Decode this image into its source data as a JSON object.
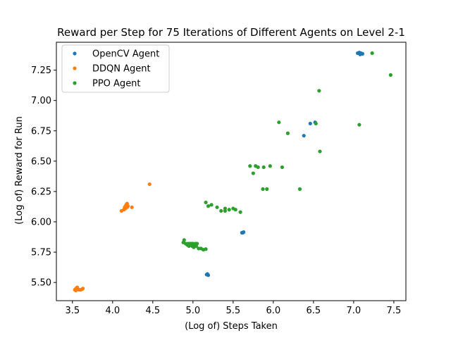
{
  "chart_data": {
    "type": "scatter",
    "title": "Reward per Step for 75 Iterations of Different Agents on Level 2-1",
    "xlabel": "(Log of) Steps Taken",
    "ylabel": "(Log of) Reward for Run",
    "xlim": [
      3.3,
      7.65
    ],
    "ylim": [
      5.35,
      7.48
    ],
    "xticks": [
      "3.5",
      "4.0",
      "4.5",
      "5.0",
      "5.5",
      "6.0",
      "6.5",
      "7.0",
      "7.5"
    ],
    "yticks": [
      "5.50",
      "5.75",
      "6.00",
      "6.25",
      "6.50",
      "6.75",
      "7.00",
      "7.25"
    ],
    "grid": false,
    "legend_position": "top-left",
    "series": [
      {
        "name": "OpenCV Agent",
        "color": "#1f77b4",
        "points": [
          [
            5.18,
            5.57
          ],
          [
            5.19,
            5.56
          ],
          [
            5.17,
            5.565
          ],
          [
            5.62,
            5.91
          ],
          [
            5.63,
            5.915
          ],
          [
            5.61,
            5.91
          ],
          [
            6.38,
            6.71
          ],
          [
            6.46,
            6.81
          ],
          [
            6.52,
            6.82
          ],
          [
            7.05,
            7.39
          ],
          [
            7.07,
            7.395
          ],
          [
            7.09,
            7.39
          ],
          [
            7.1,
            7.385
          ],
          [
            7.11,
            7.385
          ],
          [
            7.08,
            7.38
          ]
        ]
      },
      {
        "name": "DDQN Agent",
        "color": "#ff7f0e",
        "points": [
          [
            3.53,
            5.44
          ],
          [
            3.54,
            5.445
          ],
          [
            3.55,
            5.44
          ],
          [
            3.56,
            5.45
          ],
          [
            3.55,
            5.455
          ],
          [
            3.57,
            5.445
          ],
          [
            3.58,
            5.44
          ],
          [
            3.6,
            5.44
          ],
          [
            3.62,
            5.445
          ],
          [
            3.63,
            5.45
          ],
          [
            3.56,
            5.46
          ],
          [
            3.54,
            5.435
          ],
          [
            4.11,
            6.09
          ],
          [
            4.14,
            6.1
          ],
          [
            4.15,
            6.12
          ],
          [
            4.16,
            6.13
          ],
          [
            4.17,
            6.14
          ],
          [
            4.18,
            6.15
          ],
          [
            4.19,
            6.13
          ],
          [
            4.16,
            6.11
          ],
          [
            4.18,
            6.12
          ],
          [
            4.24,
            6.12
          ],
          [
            4.46,
            6.31
          ]
        ]
      },
      {
        "name": "PPO Agent",
        "color": "#2ca02c",
        "points": [
          [
            4.88,
            5.83
          ],
          [
            4.89,
            5.85
          ],
          [
            4.91,
            5.82
          ],
          [
            4.93,
            5.81
          ],
          [
            4.94,
            5.82
          ],
          [
            4.95,
            5.8
          ],
          [
            4.96,
            5.82
          ],
          [
            4.97,
            5.81
          ],
          [
            4.98,
            5.82
          ],
          [
            4.99,
            5.8
          ],
          [
            5.0,
            5.82
          ],
          [
            5.01,
            5.79
          ],
          [
            5.02,
            5.81
          ],
          [
            5.03,
            5.82
          ],
          [
            5.04,
            5.8
          ],
          [
            5.05,
            5.82
          ],
          [
            5.07,
            5.78
          ],
          [
            5.1,
            5.78
          ],
          [
            5.13,
            5.77
          ],
          [
            5.16,
            5.775
          ],
          [
            5.16,
            6.16
          ],
          [
            5.19,
            6.13
          ],
          [
            5.23,
            6.14
          ],
          [
            5.3,
            6.12
          ],
          [
            5.35,
            6.09
          ],
          [
            5.4,
            6.11
          ],
          [
            5.4,
            6.09
          ],
          [
            5.45,
            6.1
          ],
          [
            5.5,
            6.11
          ],
          [
            5.53,
            6.1
          ],
          [
            5.59,
            6.08
          ],
          [
            5.71,
            6.46
          ],
          [
            5.75,
            6.4
          ],
          [
            5.78,
            6.46
          ],
          [
            5.81,
            6.45
          ],
          [
            5.88,
            6.45
          ],
          [
            5.96,
            6.46
          ],
          [
            5.87,
            6.27
          ],
          [
            5.92,
            6.27
          ],
          [
            6.11,
            6.45
          ],
          [
            6.07,
            6.82
          ],
          [
            6.18,
            6.73
          ],
          [
            6.33,
            6.27
          ],
          [
            6.53,
            6.81
          ],
          [
            6.57,
            7.08
          ],
          [
            6.58,
            6.58
          ],
          [
            7.07,
            6.8
          ],
          [
            7.23,
            7.39
          ],
          [
            7.46,
            7.21
          ]
        ]
      }
    ]
  }
}
